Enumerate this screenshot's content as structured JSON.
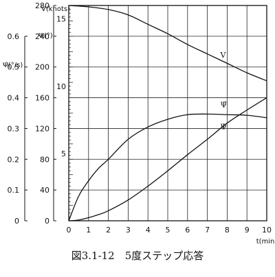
{
  "caption": "図3.1-12　5度ステップ応答",
  "chart_data": {
    "type": "line",
    "x_axis": {
      "label": "t(min)",
      "range": [
        0,
        10
      ],
      "ticks": [
        "0",
        "1",
        "2",
        "3",
        "4",
        "5",
        "6",
        "7",
        "8",
        "9",
        "10"
      ]
    },
    "y_axes": [
      {
        "key": "V",
        "label": "V(knots)",
        "range": [
          0,
          16
        ],
        "ticks": [
          "5",
          "10",
          "15"
        ]
      },
      {
        "key": "Psi",
        "label": "Ψ(°)",
        "range": [
          0,
          280
        ],
        "ticks": [
          "0",
          "40",
          "80",
          "120",
          "160",
          "200",
          "240",
          "280"
        ]
      },
      {
        "key": "PsiDot",
        "label": "Ψ̇(°/s)",
        "range": [
          0,
          0.7
        ],
        "ticks": [
          "0",
          "0.1",
          "0.2",
          "0.3",
          "0.4",
          "0.5",
          "0.6"
        ]
      }
    ],
    "grid": true,
    "series": [
      {
        "name": "V",
        "axis": "V",
        "x": [
          0,
          1,
          2,
          3,
          4,
          5,
          6,
          7,
          8,
          9,
          10
        ],
        "y": [
          16,
          15.9,
          15.7,
          15.3,
          14.6,
          13.9,
          13.1,
          12.4,
          11.7,
          11.0,
          10.4
        ]
      },
      {
        "name": "Ψ̇",
        "axis": "PsiDot",
        "x": [
          0,
          0.5,
          1,
          1.5,
          2,
          3,
          4,
          5,
          6,
          7,
          8,
          9,
          10
        ],
        "y": [
          0,
          0.08,
          0.13,
          0.17,
          0.2,
          0.265,
          0.305,
          0.33,
          0.345,
          0.347,
          0.345,
          0.343,
          0.335
        ]
      },
      {
        "name": "Ψ",
        "axis": "Psi",
        "x": [
          0,
          0.5,
          1,
          1.5,
          2,
          3,
          4,
          5,
          6,
          7,
          8,
          9,
          10
        ],
        "y": [
          0,
          1,
          4,
          8,
          13,
          27,
          45,
          65,
          86,
          106,
          127,
          144,
          160
        ]
      }
    ]
  }
}
